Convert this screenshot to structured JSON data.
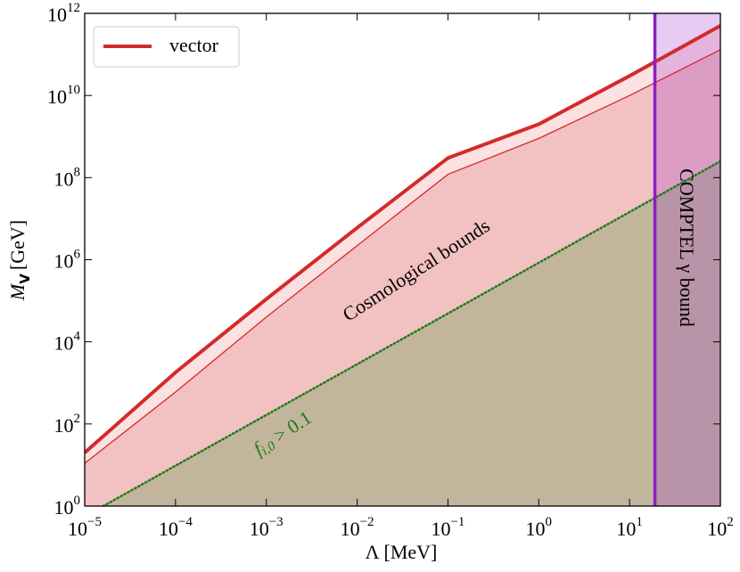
{
  "chart_data": {
    "type": "line",
    "xlabel": "Λ [MeV]",
    "ylabel": {
      "text": "M",
      "sub": "V",
      "unit": "[GeV]"
    },
    "log_x": true,
    "log_y": true,
    "xlim": [
      1e-05,
      100
    ],
    "ylim": [
      1,
      1000000000000.0
    ],
    "xticks": [
      {
        "value": 1e-05,
        "label": "10",
        "exponent": "−5"
      },
      {
        "value": 0.0001,
        "label": "10",
        "exponent": "−4"
      },
      {
        "value": 0.001,
        "label": "10",
        "exponent": "−3"
      },
      {
        "value": 0.01,
        "label": "10",
        "exponent": "−2"
      },
      {
        "value": 0.1,
        "label": "10",
        "exponent": "−1"
      },
      {
        "value": 1,
        "label": "10",
        "exponent": "0"
      },
      {
        "value": 10,
        "label": "10",
        "exponent": "1"
      },
      {
        "value": 100,
        "label": "10",
        "exponent": "2"
      }
    ],
    "yticks": [
      {
        "value": 1,
        "label": "10",
        "exponent": "0"
      },
      {
        "value": 100,
        "label": "10",
        "exponent": "2"
      },
      {
        "value": 10000,
        "label": "10",
        "exponent": "4"
      },
      {
        "value": 1000000,
        "label": "10",
        "exponent": "6"
      },
      {
        "value": 100000000,
        "label": "10",
        "exponent": "8"
      },
      {
        "value": 10000000000,
        "label": "10",
        "exponent": "10"
      },
      {
        "value": 1000000000000,
        "label": "10",
        "exponent": "12"
      }
    ],
    "legend": "upper left",
    "series": [
      {
        "name": "vector",
        "color": "#d42a2a",
        "fill": "#fbe1e1",
        "x": [
          1e-05,
          0.0001,
          0.001,
          0.01,
          0.1,
          1,
          10,
          100
        ],
        "values": [
          20,
          1800,
          110000,
          6000000,
          300000000,
          2000000000,
          30000000000,
          500000000000
        ]
      },
      {
        "color": "#d42a2a",
        "fill": "#f2c1c1",
        "x": [
          1e-05,
          0.0001,
          0.001,
          0.01,
          0.1,
          1,
          10,
          100
        ],
        "values": [
          11,
          600,
          40000,
          2200000,
          120000000,
          900000000,
          10000000000,
          130000000000
        ]
      },
      {
        "color": "#1e7b1e",
        "fill": "#c3b59b",
        "dotted": true,
        "x": [
          1.6e-05,
          100
        ],
        "values": [
          1,
          250000000
        ]
      }
    ],
    "vline": {
      "x": 19,
      "color": "#8a1fc4",
      "fill": "#9b30d0"
    },
    "annotations": [
      {
        "text": "Cosmological bounds",
        "color": "#d42a2a"
      },
      {
        "text": "COMPTEL γ bound",
        "color": "#8a1fc4"
      },
      {
        "text": "f",
        "sub": "i,0",
        "rest": " > 0.1",
        "color": "#1e7b1e"
      }
    ]
  }
}
